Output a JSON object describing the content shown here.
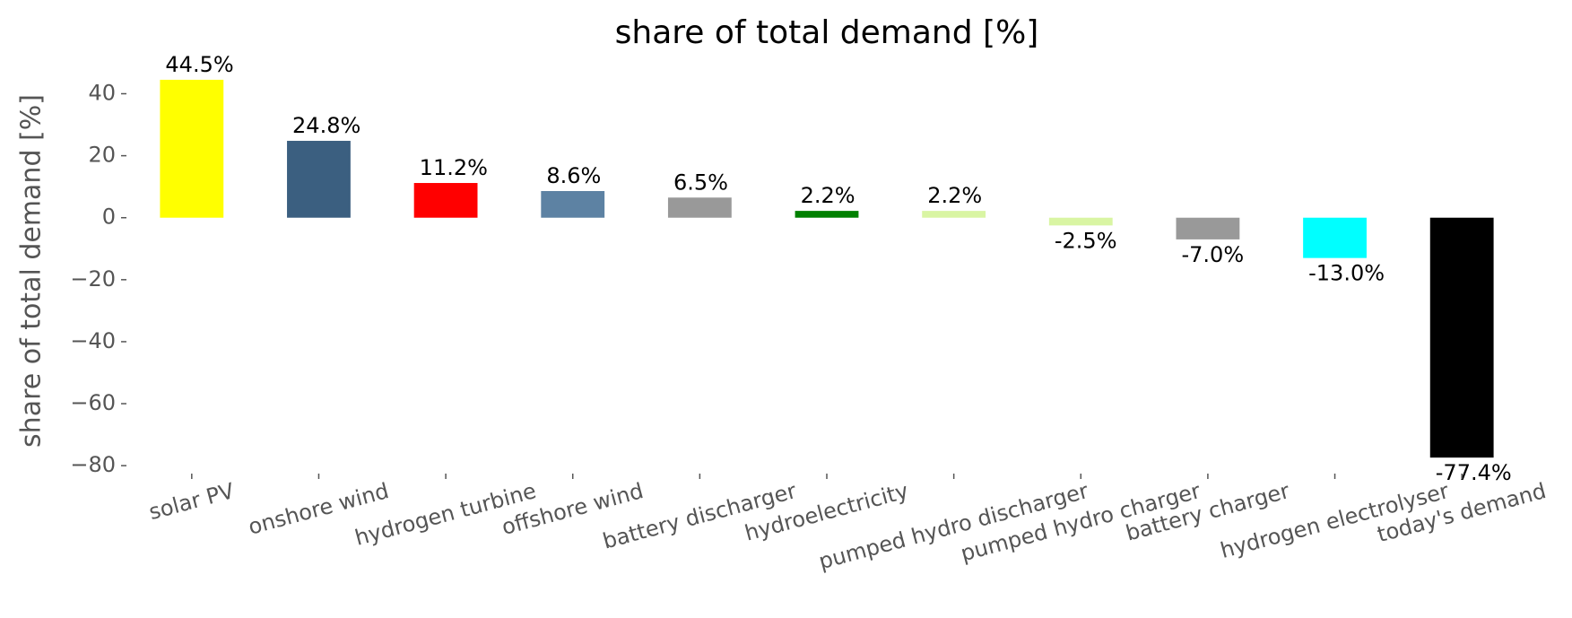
{
  "chart_data": {
    "type": "bar",
    "title": "share of total demand [%]",
    "ylabel": "share of total demand [%]",
    "categories": [
      "solar PV",
      "onshore wind",
      "hydrogen turbine",
      "offshore wind",
      "battery discharger",
      "hydroelectricity",
      "pumped hydro discharger",
      "pumped hydro charger",
      "battery charger",
      "hydrogen electrolyser",
      "today's demand"
    ],
    "values": [
      44.5,
      24.8,
      11.2,
      8.6,
      6.5,
      2.2,
      2.2,
      -2.5,
      -7.0,
      -13.0,
      -77.4
    ],
    "value_labels": [
      "44.5%",
      "24.8%",
      "11.2%",
      "8.6%",
      "6.5%",
      "2.2%",
      "2.2%",
      "-2.5%",
      "-7.0%",
      "-13.0%",
      "-77.4%"
    ],
    "colors": [
      "#ffff00",
      "#3b5f80",
      "#ff0000",
      "#5d82a3",
      "#999999",
      "#008000",
      "#d9f5a3",
      "#d9f5a3",
      "#999999",
      "#00ffff",
      "#000000"
    ],
    "ylim": [
      -81.4,
      46.8
    ],
    "yticks": [
      {
        "value": -80,
        "label": "−80"
      },
      {
        "value": -60,
        "label": "−60"
      },
      {
        "value": -40,
        "label": "−40"
      },
      {
        "value": -20,
        "label": "−20"
      },
      0,
      20,
      40
    ],
    "grid": false
  }
}
